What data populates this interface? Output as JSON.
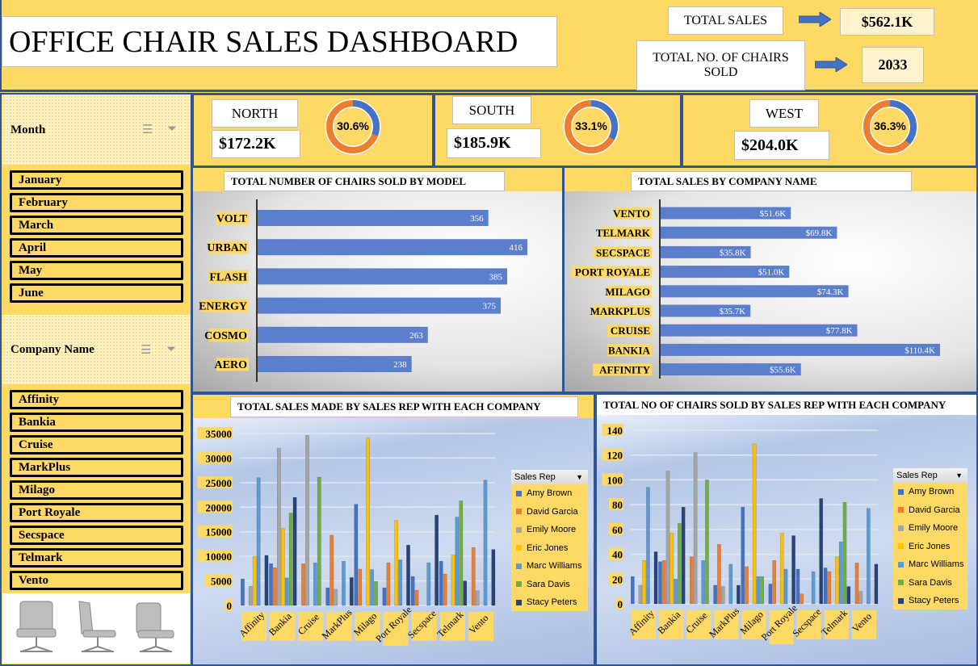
{
  "header": {
    "title": "OFFICE CHAIR SALES DASHBOARD",
    "total_sales_label": "TOTAL SALES",
    "total_sales_value": "$562.1K",
    "total_chairs_label": "TOTAL NO. OF CHAIRS SOLD",
    "total_chairs_value": "2033"
  },
  "regions": [
    {
      "name": "NORTH",
      "value": "$172.2K",
      "pct_label": "30.6%",
      "pct": 30.6
    },
    {
      "name": "SOUTH",
      "value": "$185.9K",
      "pct_label": "33.1%",
      "pct": 33.1
    },
    {
      "name": "WEST",
      "value": "$204.0K",
      "pct_label": "36.3%",
      "pct": 36.3
    }
  ],
  "sidebar": {
    "month_label": "Month",
    "months": [
      "January",
      "February",
      "March",
      "April",
      "May",
      "June"
    ],
    "company_label": "Company Name",
    "companies": [
      "Affinity",
      "Bankia",
      "Cruise",
      "MarkPlus",
      "Milago",
      "Port Royale",
      "Secspace",
      "Telmark",
      "Vento"
    ]
  },
  "colors": {
    "bar": "#5b7fcc",
    "donut_blue": "#4472c4",
    "donut_orange": "#ed7d31",
    "yellow": "#ffd966",
    "border": "#2f5597"
  },
  "chart_data": [
    {
      "type": "bar",
      "orientation": "horizontal",
      "title": "TOTAL NUMBER OF CHAIRS SOLD BY MODEL",
      "categories": [
        "VOLT",
        "URBAN",
        "FLASH",
        "ENERGY",
        "COSMO",
        "AERO"
      ],
      "values": [
        356,
        416,
        385,
        375,
        263,
        238
      ],
      "labels": [
        "356",
        "416",
        "385",
        "375",
        "263",
        "238"
      ]
    },
    {
      "type": "bar",
      "orientation": "horizontal",
      "title": "TOTAL SALES BY COMPANY NAME",
      "categories": [
        "VENTO",
        "TELMARK",
        "SECSPACE",
        "PORT ROYALE",
        "MILAGO",
        "MARKPLUS",
        "CRUISE",
        "BANKIA",
        "AFFINITY"
      ],
      "values": [
        51.6,
        69.8,
        35.8,
        51.0,
        74.3,
        35.7,
        77.8,
        110.4,
        55.6
      ],
      "labels": [
        "$51.6K",
        "$69.8K",
        "$35.8K",
        "$51.0K",
        "$74.3K",
        "$35.7K",
        "$77.8K",
        "$110.4K",
        "$55.6K"
      ]
    },
    {
      "type": "bar",
      "title": "TOTAL SALES MADE BY SALES REP WITH EACH COMPANY",
      "legend_title": "Sales Rep",
      "categories": [
        "Affinity",
        "Bankia",
        "Cruise",
        "MarkPlus",
        "Milago",
        "Port Royale",
        "Secspace",
        "Telmark",
        "Vento"
      ],
      "yticks": [
        "0",
        "5000",
        "10000",
        "15000",
        "20000",
        "25000",
        "30000",
        "35000"
      ],
      "ylim": [
        0,
        35000
      ],
      "series": [
        {
          "name": "Amy Brown",
          "color": "#4472c4",
          "values": [
            5400,
            8500,
            0,
            3600,
            20600,
            3600,
            5900,
            9000,
            0
          ]
        },
        {
          "name": "David Garcia",
          "color": "#ed7d31",
          "values": [
            0,
            7700,
            8500,
            14300,
            7400,
            8700,
            3100,
            6400,
            11800
          ]
        },
        {
          "name": "Emily Moore",
          "color": "#a5a5a5",
          "values": [
            3900,
            32000,
            34600,
            3300,
            0,
            0,
            0,
            0,
            3000
          ]
        },
        {
          "name": "Eric Jones",
          "color": "#ffc000",
          "values": [
            10000,
            15700,
            0,
            0,
            34100,
            17300,
            0,
            10300,
            0
          ]
        },
        {
          "name": "Marc Williams",
          "color": "#5b9bd5",
          "values": [
            26000,
            5600,
            8700,
            9000,
            7300,
            9300,
            8700,
            18000,
            25500
          ]
        },
        {
          "name": "Sara Davis",
          "color": "#70ad47",
          "values": [
            0,
            18800,
            26100,
            0,
            4900,
            0,
            0,
            21300,
            0
          ]
        },
        {
          "name": "Stacy Peters",
          "color": "#264478",
          "values": [
            10200,
            22000,
            0,
            5700,
            0,
            12300,
            18400,
            5000,
            11400
          ]
        }
      ]
    },
    {
      "type": "bar",
      "title": "TOTAL NO OF CHAIRS SOLD BY SALES REP WITH EACH COMPANY",
      "legend_title": "Sales Rep",
      "categories": [
        "Affinity",
        "Bankia",
        "Cruise",
        "MarkPlus",
        "Milago",
        "Port Royale",
        "Secspace",
        "Telmark",
        "Vento"
      ],
      "yticks": [
        "0",
        "20",
        "40",
        "60",
        "80",
        "100",
        "120",
        "140"
      ],
      "ylim": [
        0,
        140
      ],
      "series": [
        {
          "name": "Amy Brown",
          "color": "#4472c4",
          "values": [
            22,
            34,
            0,
            15,
            78,
            16,
            28,
            29,
            0
          ]
        },
        {
          "name": "David Garcia",
          "color": "#ed7d31",
          "values": [
            0,
            35,
            38,
            48,
            30,
            35,
            8,
            26,
            33
          ]
        },
        {
          "name": "Emily Moore",
          "color": "#a5a5a5",
          "values": [
            15,
            107,
            122,
            14,
            0,
            0,
            0,
            0,
            10
          ]
        },
        {
          "name": "Eric Jones",
          "color": "#ffc000",
          "values": [
            35,
            57,
            0,
            0,
            129,
            57,
            0,
            38,
            0
          ]
        },
        {
          "name": "Marc Williams",
          "color": "#5b9bd5",
          "values": [
            94,
            20,
            35,
            32,
            22,
            28,
            26,
            50,
            77
          ]
        },
        {
          "name": "Sara Davis",
          "color": "#70ad47",
          "values": [
            0,
            65,
            100,
            0,
            22,
            0,
            0,
            82,
            0
          ]
        },
        {
          "name": "Stacy Peters",
          "color": "#264478",
          "values": [
            42,
            78,
            0,
            15,
            0,
            55,
            85,
            14,
            32
          ]
        }
      ]
    }
  ]
}
